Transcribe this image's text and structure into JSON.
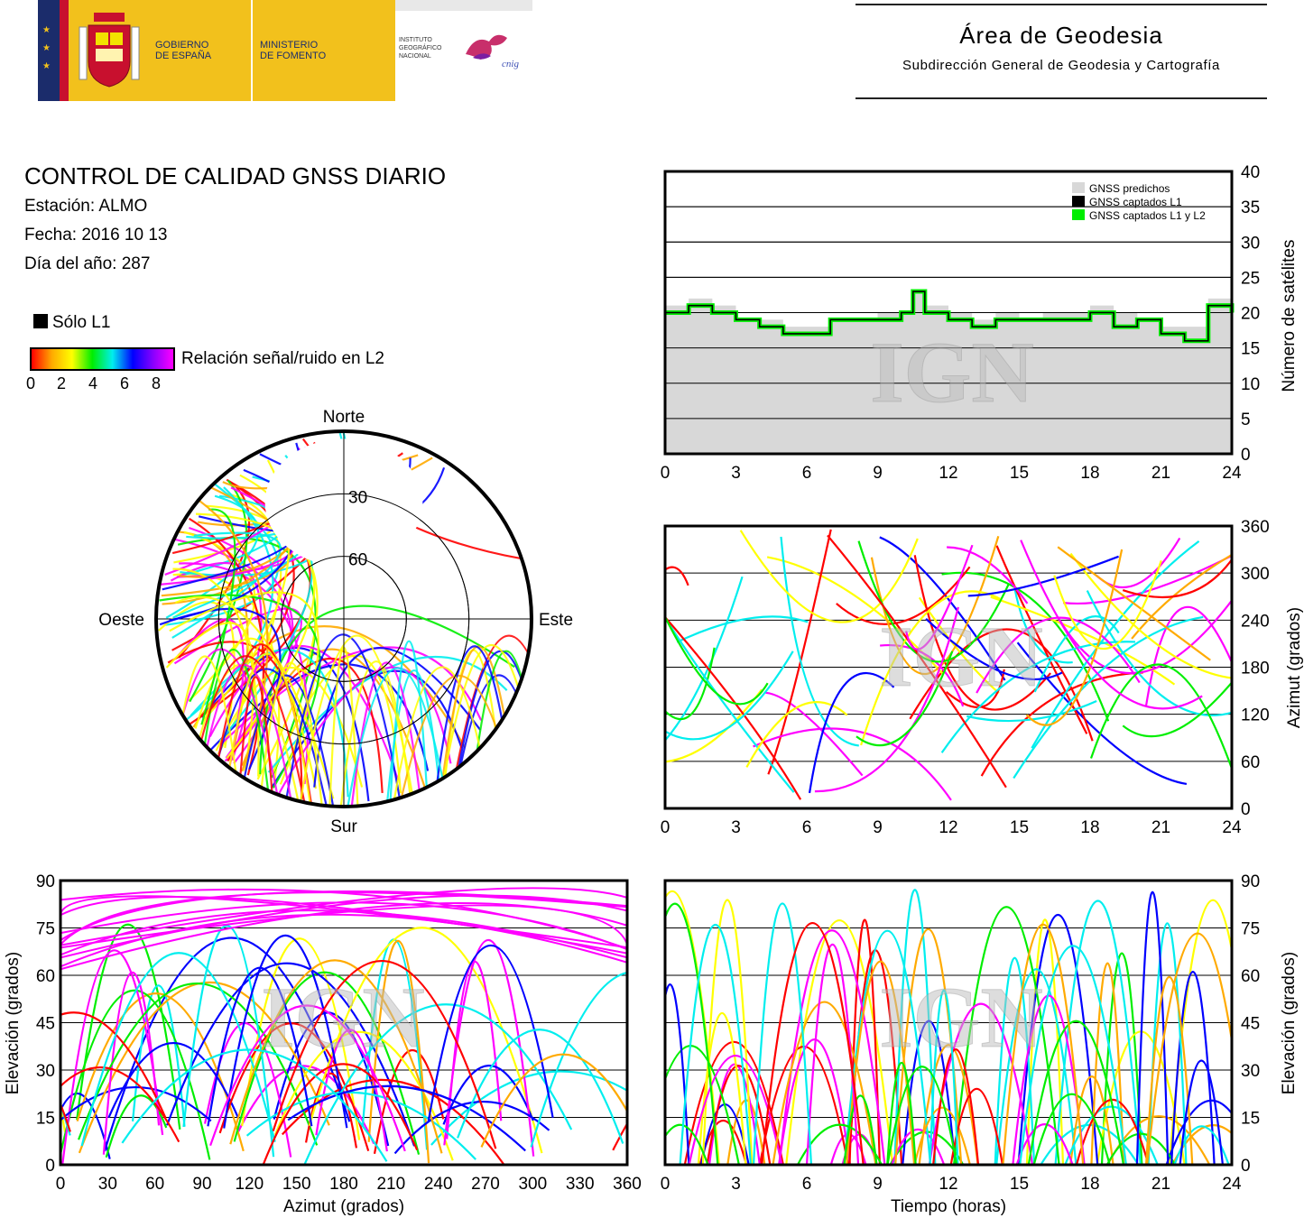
{
  "header": {
    "gobierno": "GOBIERNO\nDE ESPAÑA",
    "ministerio": "MINISTERIO\nDE FOMENTO",
    "ign": "INSTITUTO\nGEOGRÁFICO\nNACIONAL",
    "cnig": "cnig",
    "area_title": "Área de Geodesia",
    "area_sub": "Subdirección General de Geodesia y Cartografía"
  },
  "info": {
    "title": "CONTROL DE CALIDAD GNSS DIARIO",
    "station": "Estación: ALMO",
    "date": "Fecha: 2016 10 13",
    "doy": "Día del año: 287",
    "solo_l1": "Sólo L1",
    "snr_label": "Relación señal/ruido en L2",
    "snr_ticks": [
      "0",
      "2",
      "4",
      "6",
      "8"
    ]
  },
  "watermark": "IGN",
  "colors": {
    "l1_only": "#000000",
    "predicted": "#d8d8d8",
    "captured_l1l2": "#00ee00",
    "snr_scale": [
      "#ff0000",
      "#ffaa00",
      "#ffff00",
      "#00ee00",
      "#00eeee",
      "#0000ff",
      "#ff00ff"
    ]
  },
  "chart_data": [
    {
      "id": "satellite_count",
      "type": "area",
      "x": [
        0,
        1,
        2,
        3,
        4,
        5,
        6,
        7,
        8,
        9,
        10,
        10.5,
        11,
        12,
        13,
        14,
        15,
        16,
        17,
        18,
        19,
        20,
        21,
        22,
        23,
        24
      ],
      "series": [
        {
          "name": "GNSS predichos",
          "values": [
            21,
            22,
            21,
            19,
            19,
            18,
            18,
            19,
            19,
            20,
            20,
            23,
            21,
            20,
            19,
            20,
            19,
            20,
            20,
            21,
            20,
            19,
            18,
            18,
            22,
            21
          ]
        },
        {
          "name": "GNSS captados L1 y L2",
          "values": [
            20,
            21,
            20,
            19,
            18,
            17,
            17,
            19,
            19,
            19,
            20,
            23,
            20,
            19,
            18,
            19,
            19,
            19,
            19,
            20,
            18,
            19,
            17,
            16,
            21,
            20
          ]
        }
      ],
      "legend": [
        "GNSS predichos",
        "GNSS captados L1",
        "GNSS captados L1 y L2"
      ],
      "xticks": [
        "0",
        "3",
        "6",
        "9",
        "12",
        "15",
        "18",
        "21",
        "24"
      ],
      "yticks": [
        "0",
        "5",
        "10",
        "15",
        "20",
        "25",
        "30",
        "35",
        "40"
      ],
      "ylabel": "Número de satélites",
      "xlim": [
        0,
        24
      ],
      "ylim": [
        0,
        40
      ],
      "grid": true,
      "legend_position": "top-right"
    },
    {
      "id": "skyplot",
      "type": "scatter",
      "labels": {
        "north": "Norte",
        "south": "Sur",
        "east": "Este",
        "west": "Oeste"
      },
      "rings": [
        "30",
        "60"
      ]
    },
    {
      "id": "azimuth_time",
      "type": "scatter",
      "xticks": [
        "0",
        "3",
        "6",
        "9",
        "12",
        "15",
        "18",
        "21",
        "24"
      ],
      "yticks": [
        "0",
        "60",
        "120",
        "180",
        "240",
        "300",
        "360"
      ],
      "ylabel": "Azimut (grados)",
      "xlim": [
        0,
        24
      ],
      "ylim": [
        0,
        360
      ],
      "grid": true
    },
    {
      "id": "elevation_azimuth",
      "type": "scatter",
      "xticks": [
        "0",
        "30",
        "60",
        "90",
        "120",
        "150",
        "180",
        "210",
        "240",
        "270",
        "300",
        "330",
        "360"
      ],
      "yticks": [
        "0",
        "15",
        "30",
        "45",
        "60",
        "75",
        "90"
      ],
      "xlabel": "Azimut (grados)",
      "ylabel": "Elevación (grados)",
      "xlim": [
        0,
        360
      ],
      "ylim": [
        0,
        90
      ],
      "grid": true
    },
    {
      "id": "elevation_time",
      "type": "scatter",
      "xticks": [
        "0",
        "3",
        "6",
        "9",
        "12",
        "15",
        "18",
        "21",
        "24"
      ],
      "yticks": [
        "0",
        "15",
        "30",
        "45",
        "60",
        "75",
        "90"
      ],
      "xlabel": "Tiempo (horas)",
      "ylabel": "Elevación (grados)",
      "xlim": [
        0,
        24
      ],
      "ylim": [
        0,
        90
      ],
      "grid": true
    }
  ]
}
